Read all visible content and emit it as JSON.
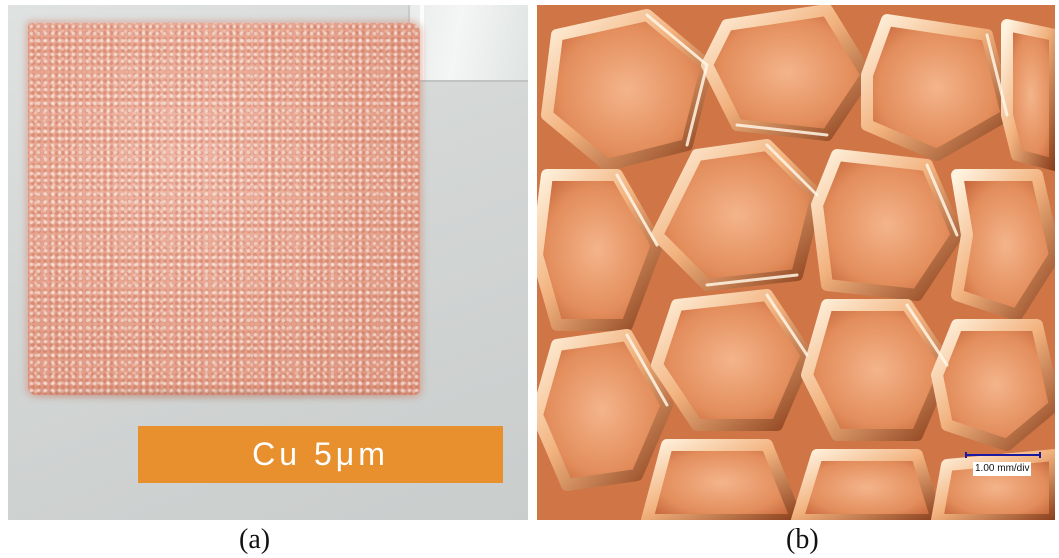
{
  "figure": {
    "panel_a": {
      "caption": "(a)",
      "sample_label": "Cu 5μm",
      "colors": {
        "foam": "#e8a690",
        "label_tag": "#e8902e",
        "background": "#d3d6d5"
      }
    },
    "panel_b": {
      "caption": "(b)",
      "scale_bar_label": "1.00 mm/div",
      "colors": {
        "copper_highlight": "#fff2dc",
        "copper_base": "#d67b4e",
        "scale_bar": "#1a1aa0"
      }
    }
  }
}
